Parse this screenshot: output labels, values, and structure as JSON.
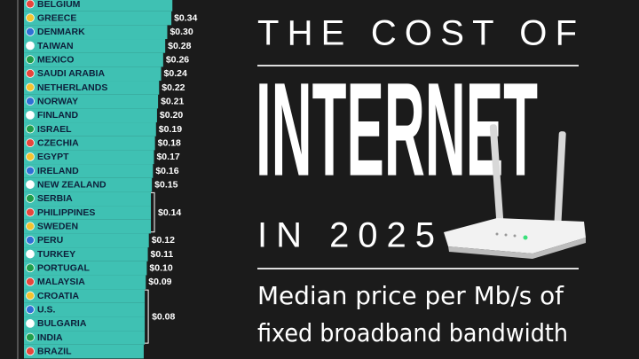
{
  "chart_data": {
    "type": "hbar",
    "title_lines": [
      "THE COST OF",
      "INTERNET",
      "IN 2025"
    ],
    "subtitle_lines": [
      "Median price per Mb/s of",
      "fixed broadband bandwidth"
    ],
    "categories": [
      "BELGIUM",
      "GREECE",
      "DENMARK",
      "TAIWAN",
      "MEXICO",
      "SAUDI ARABIA",
      "NETHERLANDS",
      "NORWAY",
      "FINLAND",
      "ISRAEL",
      "CZECHIA",
      "EGYPT",
      "IRELAND",
      "NEW ZEALAND",
      "SERBIA",
      "PHILIPPINES",
      "SWEDEN",
      "PERU",
      "TURKEY",
      "PORTUGAL",
      "MALAYSIA",
      "CROATIA",
      "U.S.",
      "BULGARIA",
      "INDIA",
      "BRAZIL"
    ],
    "values": [
      0.35,
      0.34,
      0.3,
      0.28,
      0.26,
      0.24,
      0.22,
      0.21,
      0.2,
      0.19,
      0.18,
      0.17,
      0.16,
      0.15,
      0.14,
      0.14,
      0.14,
      0.12,
      0.11,
      0.1,
      0.09,
      0.08,
      0.08,
      0.08,
      0.08,
      0.07
    ],
    "value_labels": [
      null,
      "$0.34",
      "$0.30",
      "$0.28",
      "$0.26",
      "$0.24",
      "$0.22",
      "$0.21",
      "$0.20",
      "$0.19",
      "$0.18",
      "$0.17",
      "$0.16",
      "$0.15",
      null,
      "$0.14",
      null,
      "$0.12",
      "$0.11",
      "$0.10",
      "$0.09",
      null,
      "$0.08",
      null,
      null,
      null
    ],
    "color": "#3fc1b3",
    "xlim": [
      -1.1,
      0.4
    ]
  }
}
